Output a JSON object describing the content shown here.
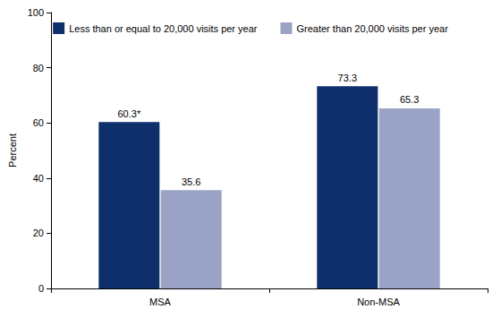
{
  "chart_data": {
    "type": "bar",
    "categories": [
      "MSA",
      "Non-MSA"
    ],
    "series": [
      {
        "name": "Less than or equal to 20,000 visits per year",
        "color": "#0e2f6b",
        "values": [
          60.3,
          73.3
        ],
        "value_labels": [
          "60.3*",
          "73.3"
        ]
      },
      {
        "name": "Greater than 20,000 visits per year",
        "color": "#9aa3c6",
        "values": [
          35.6,
          65.3
        ],
        "value_labels": [
          "35.6",
          "65.3"
        ]
      }
    ],
    "ylabel": "Percent",
    "ylim": [
      0,
      100
    ],
    "yticks": [
      0,
      20,
      40,
      60,
      80,
      100
    ],
    "grid": false,
    "legend": "top",
    "data_labels": true
  }
}
